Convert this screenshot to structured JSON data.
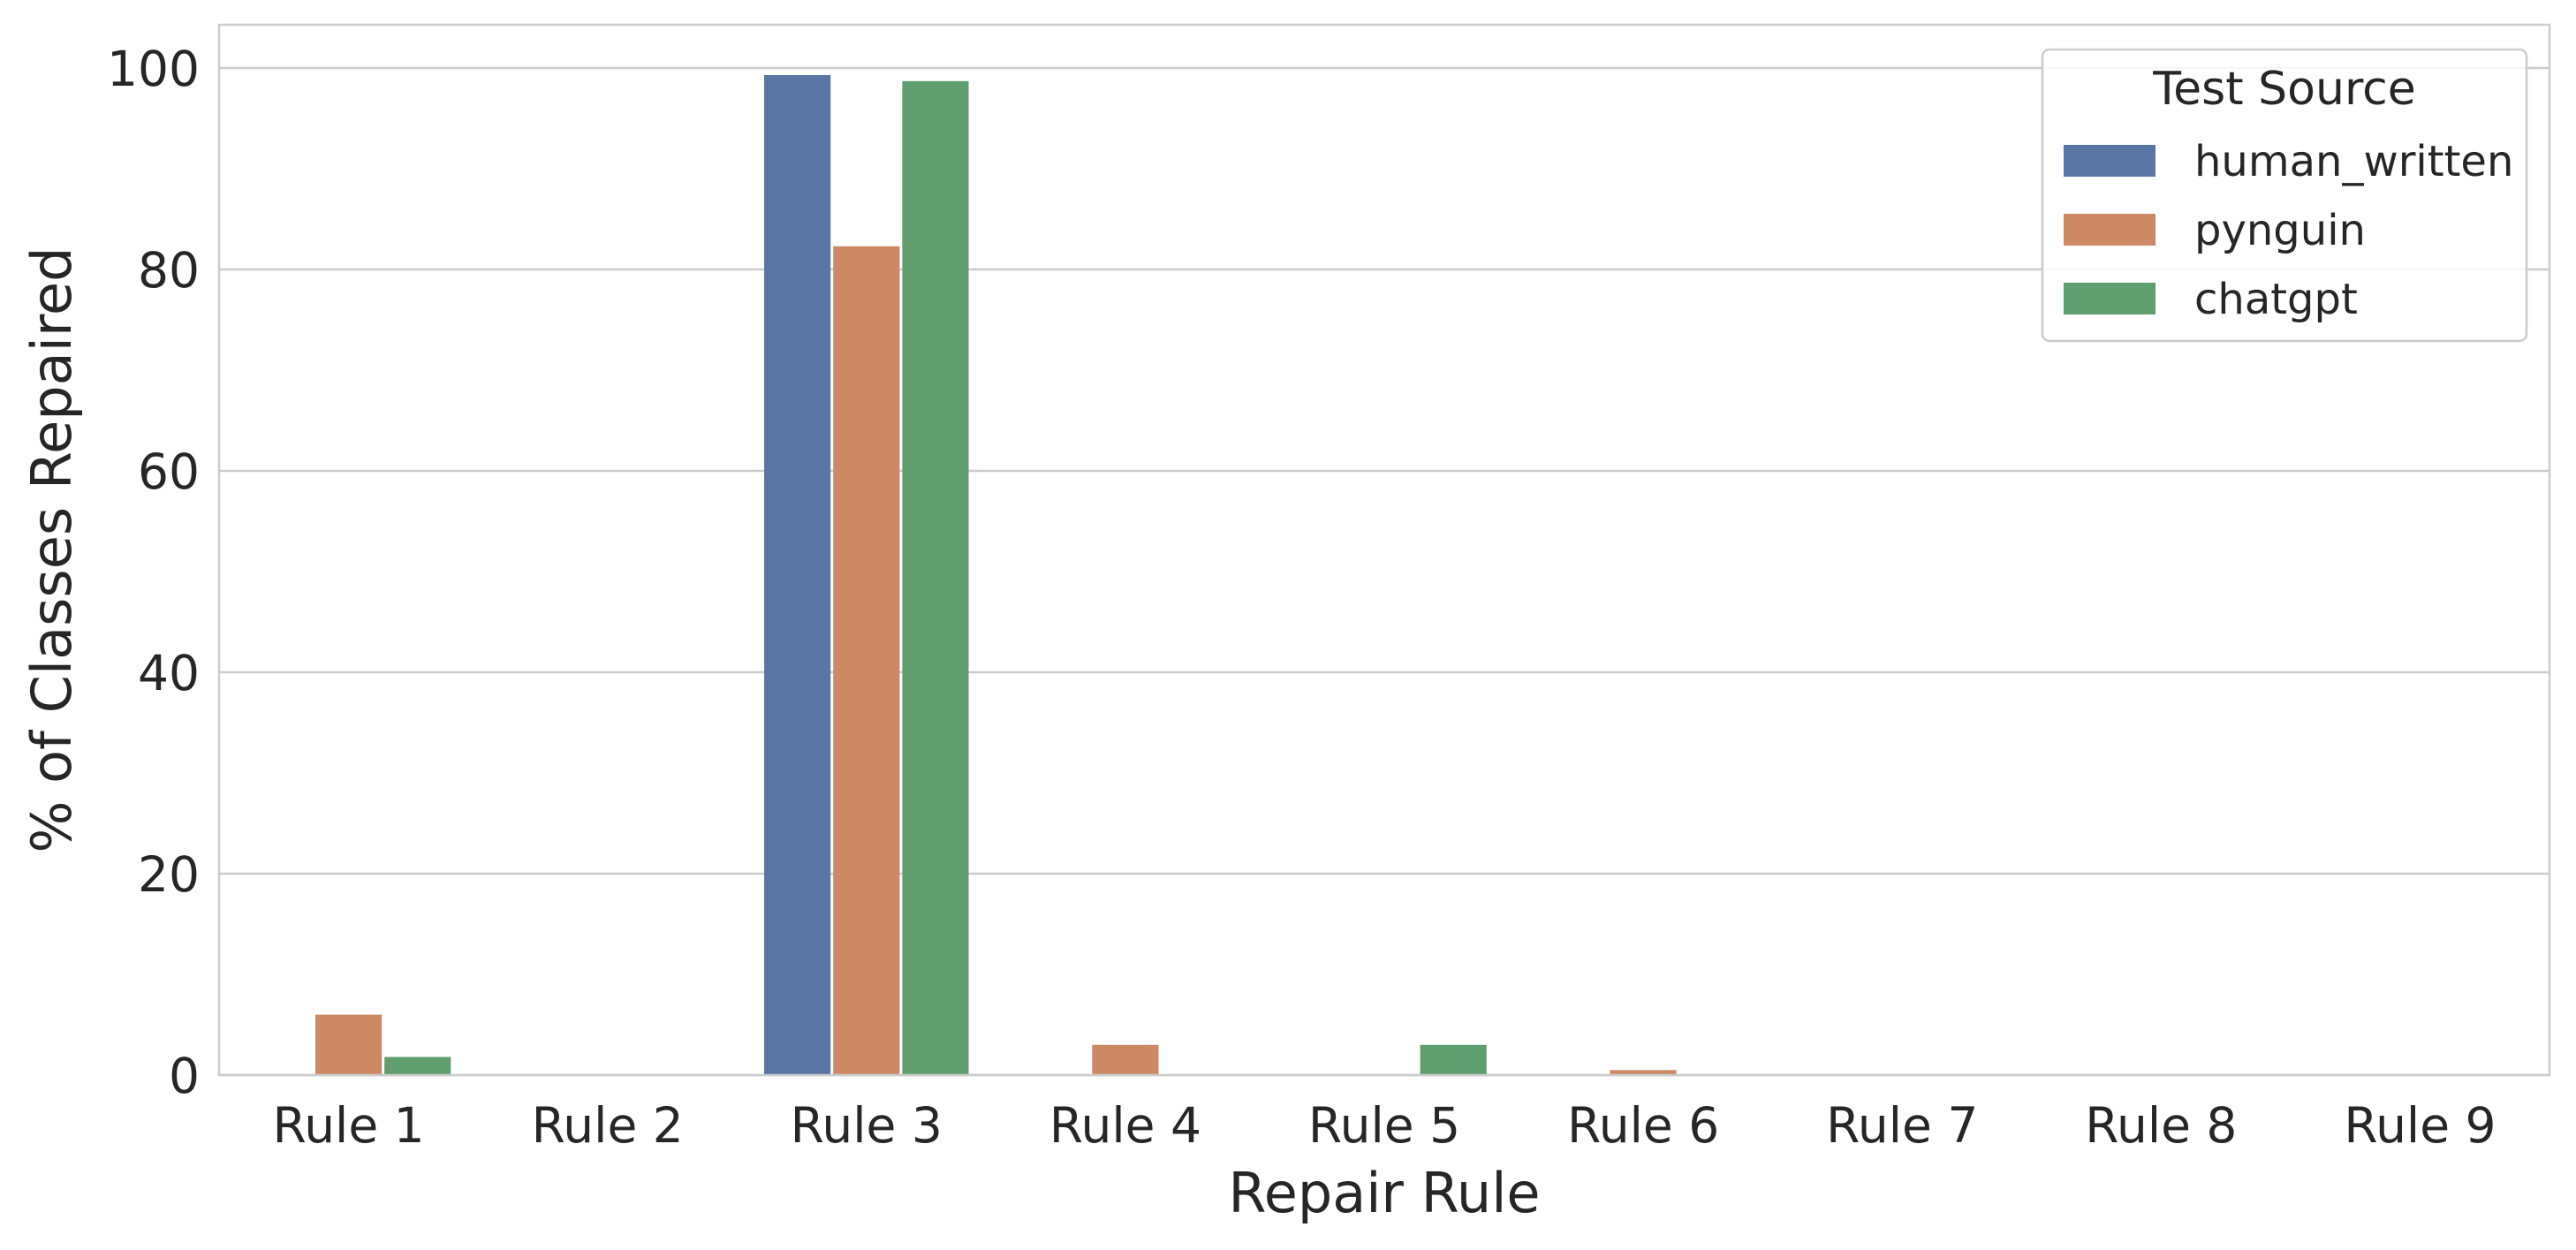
{
  "chart_data": {
    "type": "bar",
    "title": "",
    "xlabel": "Repair Rule",
    "ylabel": "% of Classes Repaired",
    "categories": [
      "Rule 1",
      "Rule 2",
      "Rule 3",
      "Rule 4",
      "Rule 5",
      "Rule 6",
      "Rule 7",
      "Rule 8",
      "Rule 9"
    ],
    "series": [
      {
        "name": "human_written",
        "color": "#5875a4",
        "values": [
          0,
          0,
          99.3,
          0,
          0,
          0,
          0,
          0,
          0
        ]
      },
      {
        "name": "pynguin",
        "color": "#cc8963",
        "values": [
          6.0,
          0,
          82.3,
          3.0,
          0,
          0.5,
          0,
          0,
          0
        ]
      },
      {
        "name": "chatgpt",
        "color": "#5f9e6e",
        "values": [
          1.8,
          0,
          98.7,
          0,
          3.0,
          0,
          0,
          0,
          0
        ]
      }
    ],
    "ylim": [
      0,
      104.3
    ],
    "yticks": [
      0,
      20,
      40,
      60,
      80,
      100
    ],
    "grid": true,
    "legend": {
      "title": "Test Source",
      "placement": "top-right"
    }
  }
}
